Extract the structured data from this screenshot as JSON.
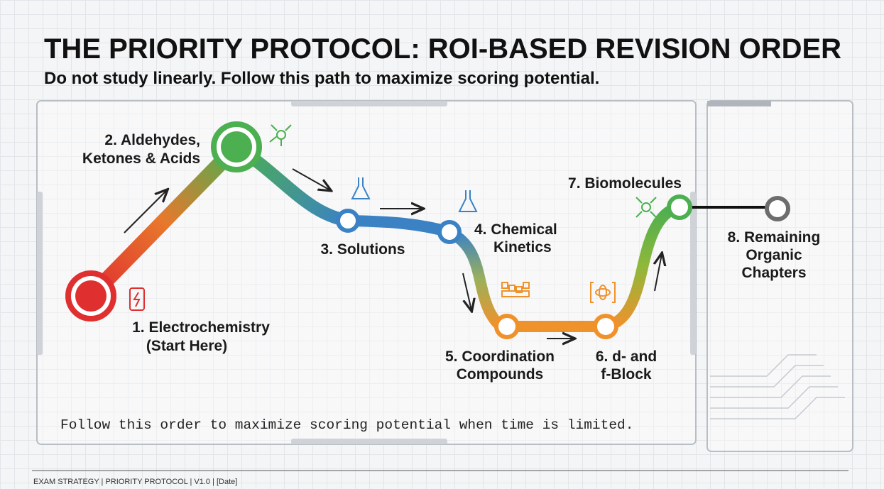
{
  "header": {
    "title": "THE PRIORITY PROTOCOL: ROI-BASED REVISION ORDER",
    "subtitle": "Do not study linearly. Follow this path to maximize scoring potential."
  },
  "nodes": [
    {
      "label": [
        "1. Electrochemistry",
        "(Start Here)"
      ]
    },
    {
      "label": [
        "2. Aldehydes,",
        "Ketones & Acids"
      ]
    },
    {
      "label": [
        "3. Solutions"
      ]
    },
    {
      "label": [
        "4. Chemical",
        "Kinetics"
      ]
    },
    {
      "label": [
        "5. Coordination",
        "Compounds"
      ]
    },
    {
      "label": [
        "6. d- and",
        "f-Block"
      ]
    },
    {
      "label": [
        "7. Biomolecules"
      ]
    },
    {
      "label": [
        "8. Remaining",
        "Organic",
        "Chapters"
      ]
    }
  ],
  "note": "Follow this order to maximize scoring potential when time is limited.",
  "footer": "EXAM STRATEGY | PRIORITY PROTOCOL | V1.0 | [Date]"
}
